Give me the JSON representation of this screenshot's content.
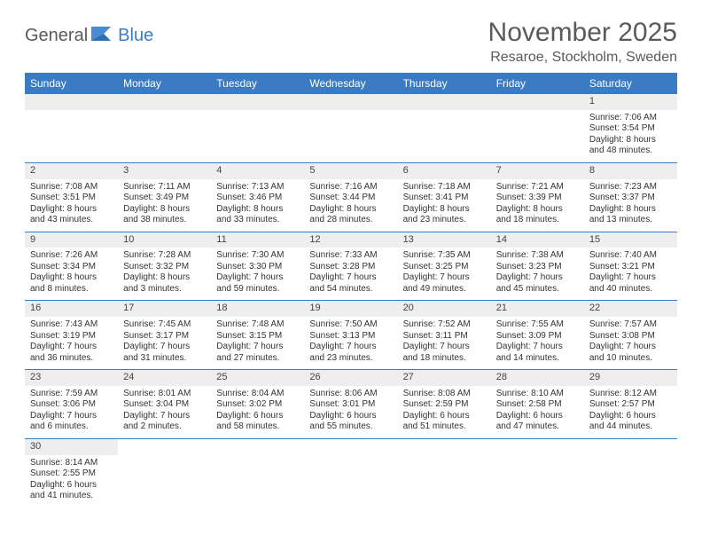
{
  "brand": {
    "name_part1": "General",
    "name_part2": "Blue"
  },
  "title": "November 2025",
  "location": "Resaroe, Stockholm, Sweden",
  "colors": {
    "header_bg": "#3b7bc4",
    "header_text": "#ffffff",
    "daynum_bg": "#eeeeee",
    "border": "#3b7bc4",
    "text": "#333333",
    "title_text": "#5a5a5a"
  },
  "day_headers": [
    "Sunday",
    "Monday",
    "Tuesday",
    "Wednesday",
    "Thursday",
    "Friday",
    "Saturday"
  ],
  "weeks": [
    [
      null,
      null,
      null,
      null,
      null,
      null,
      {
        "n": "1",
        "sr": "Sunrise: 7:06 AM",
        "ss": "Sunset: 3:54 PM",
        "dl1": "Daylight: 8 hours",
        "dl2": "and 48 minutes."
      }
    ],
    [
      {
        "n": "2",
        "sr": "Sunrise: 7:08 AM",
        "ss": "Sunset: 3:51 PM",
        "dl1": "Daylight: 8 hours",
        "dl2": "and 43 minutes."
      },
      {
        "n": "3",
        "sr": "Sunrise: 7:11 AM",
        "ss": "Sunset: 3:49 PM",
        "dl1": "Daylight: 8 hours",
        "dl2": "and 38 minutes."
      },
      {
        "n": "4",
        "sr": "Sunrise: 7:13 AM",
        "ss": "Sunset: 3:46 PM",
        "dl1": "Daylight: 8 hours",
        "dl2": "and 33 minutes."
      },
      {
        "n": "5",
        "sr": "Sunrise: 7:16 AM",
        "ss": "Sunset: 3:44 PM",
        "dl1": "Daylight: 8 hours",
        "dl2": "and 28 minutes."
      },
      {
        "n": "6",
        "sr": "Sunrise: 7:18 AM",
        "ss": "Sunset: 3:41 PM",
        "dl1": "Daylight: 8 hours",
        "dl2": "and 23 minutes."
      },
      {
        "n": "7",
        "sr": "Sunrise: 7:21 AM",
        "ss": "Sunset: 3:39 PM",
        "dl1": "Daylight: 8 hours",
        "dl2": "and 18 minutes."
      },
      {
        "n": "8",
        "sr": "Sunrise: 7:23 AM",
        "ss": "Sunset: 3:37 PM",
        "dl1": "Daylight: 8 hours",
        "dl2": "and 13 minutes."
      }
    ],
    [
      {
        "n": "9",
        "sr": "Sunrise: 7:26 AM",
        "ss": "Sunset: 3:34 PM",
        "dl1": "Daylight: 8 hours",
        "dl2": "and 8 minutes."
      },
      {
        "n": "10",
        "sr": "Sunrise: 7:28 AM",
        "ss": "Sunset: 3:32 PM",
        "dl1": "Daylight: 8 hours",
        "dl2": "and 3 minutes."
      },
      {
        "n": "11",
        "sr": "Sunrise: 7:30 AM",
        "ss": "Sunset: 3:30 PM",
        "dl1": "Daylight: 7 hours",
        "dl2": "and 59 minutes."
      },
      {
        "n": "12",
        "sr": "Sunrise: 7:33 AM",
        "ss": "Sunset: 3:28 PM",
        "dl1": "Daylight: 7 hours",
        "dl2": "and 54 minutes."
      },
      {
        "n": "13",
        "sr": "Sunrise: 7:35 AM",
        "ss": "Sunset: 3:25 PM",
        "dl1": "Daylight: 7 hours",
        "dl2": "and 49 minutes."
      },
      {
        "n": "14",
        "sr": "Sunrise: 7:38 AM",
        "ss": "Sunset: 3:23 PM",
        "dl1": "Daylight: 7 hours",
        "dl2": "and 45 minutes."
      },
      {
        "n": "15",
        "sr": "Sunrise: 7:40 AM",
        "ss": "Sunset: 3:21 PM",
        "dl1": "Daylight: 7 hours",
        "dl2": "and 40 minutes."
      }
    ],
    [
      {
        "n": "16",
        "sr": "Sunrise: 7:43 AM",
        "ss": "Sunset: 3:19 PM",
        "dl1": "Daylight: 7 hours",
        "dl2": "and 36 minutes."
      },
      {
        "n": "17",
        "sr": "Sunrise: 7:45 AM",
        "ss": "Sunset: 3:17 PM",
        "dl1": "Daylight: 7 hours",
        "dl2": "and 31 minutes."
      },
      {
        "n": "18",
        "sr": "Sunrise: 7:48 AM",
        "ss": "Sunset: 3:15 PM",
        "dl1": "Daylight: 7 hours",
        "dl2": "and 27 minutes."
      },
      {
        "n": "19",
        "sr": "Sunrise: 7:50 AM",
        "ss": "Sunset: 3:13 PM",
        "dl1": "Daylight: 7 hours",
        "dl2": "and 23 minutes."
      },
      {
        "n": "20",
        "sr": "Sunrise: 7:52 AM",
        "ss": "Sunset: 3:11 PM",
        "dl1": "Daylight: 7 hours",
        "dl2": "and 18 minutes."
      },
      {
        "n": "21",
        "sr": "Sunrise: 7:55 AM",
        "ss": "Sunset: 3:09 PM",
        "dl1": "Daylight: 7 hours",
        "dl2": "and 14 minutes."
      },
      {
        "n": "22",
        "sr": "Sunrise: 7:57 AM",
        "ss": "Sunset: 3:08 PM",
        "dl1": "Daylight: 7 hours",
        "dl2": "and 10 minutes."
      }
    ],
    [
      {
        "n": "23",
        "sr": "Sunrise: 7:59 AM",
        "ss": "Sunset: 3:06 PM",
        "dl1": "Daylight: 7 hours",
        "dl2": "and 6 minutes."
      },
      {
        "n": "24",
        "sr": "Sunrise: 8:01 AM",
        "ss": "Sunset: 3:04 PM",
        "dl1": "Daylight: 7 hours",
        "dl2": "and 2 minutes."
      },
      {
        "n": "25",
        "sr": "Sunrise: 8:04 AM",
        "ss": "Sunset: 3:02 PM",
        "dl1": "Daylight: 6 hours",
        "dl2": "and 58 minutes."
      },
      {
        "n": "26",
        "sr": "Sunrise: 8:06 AM",
        "ss": "Sunset: 3:01 PM",
        "dl1": "Daylight: 6 hours",
        "dl2": "and 55 minutes."
      },
      {
        "n": "27",
        "sr": "Sunrise: 8:08 AM",
        "ss": "Sunset: 2:59 PM",
        "dl1": "Daylight: 6 hours",
        "dl2": "and 51 minutes."
      },
      {
        "n": "28",
        "sr": "Sunrise: 8:10 AM",
        "ss": "Sunset: 2:58 PM",
        "dl1": "Daylight: 6 hours",
        "dl2": "and 47 minutes."
      },
      {
        "n": "29",
        "sr": "Sunrise: 8:12 AM",
        "ss": "Sunset: 2:57 PM",
        "dl1": "Daylight: 6 hours",
        "dl2": "and 44 minutes."
      }
    ],
    [
      {
        "n": "30",
        "sr": "Sunrise: 8:14 AM",
        "ss": "Sunset: 2:55 PM",
        "dl1": "Daylight: 6 hours",
        "dl2": "and 41 minutes."
      },
      null,
      null,
      null,
      null,
      null,
      null
    ]
  ]
}
